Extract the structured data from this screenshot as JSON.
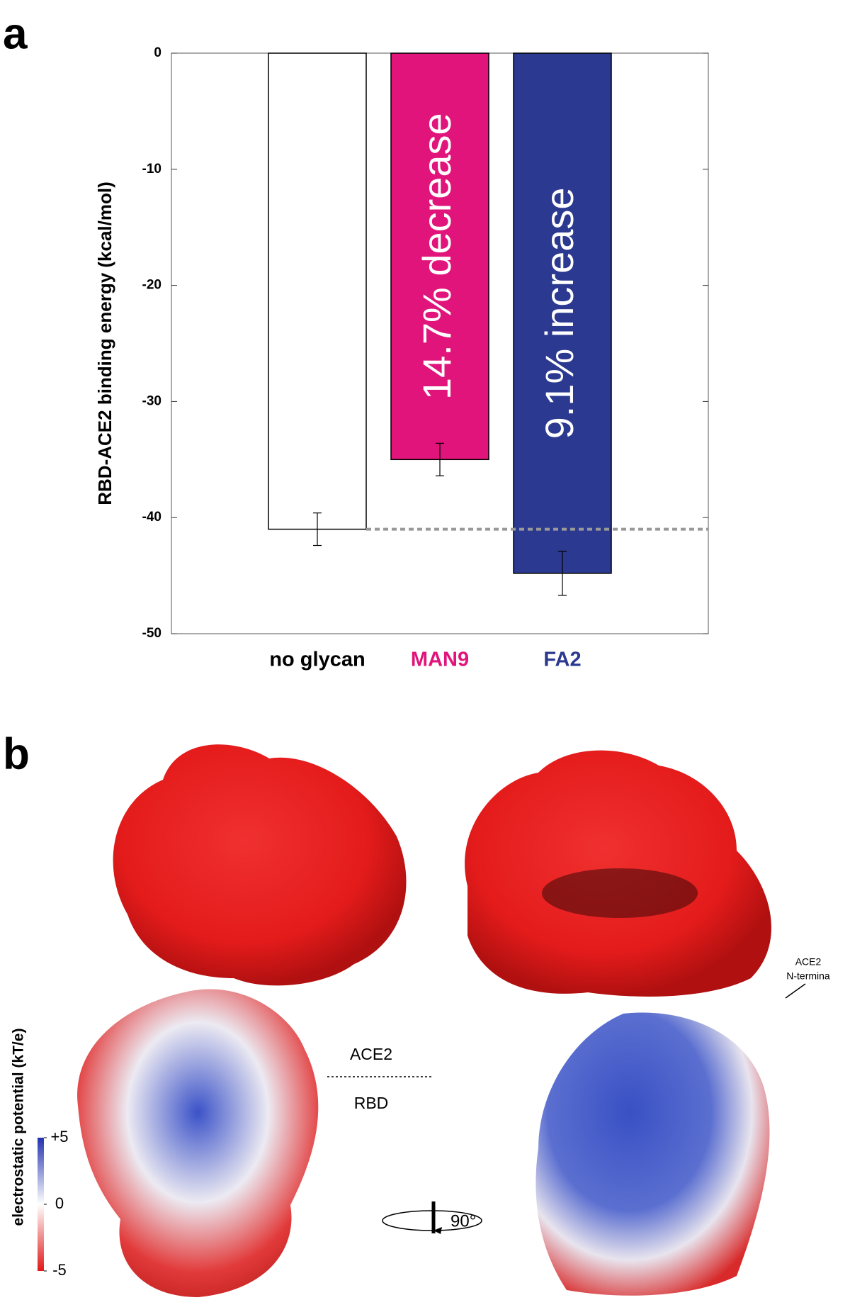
{
  "panel_labels": [
    "a",
    "b"
  ],
  "chart_data": {
    "type": "bar",
    "y_label": "RBD-ACE2 binding energy (kcal/mol)",
    "categories": [
      "no glycan",
      "MAN9",
      "FA2"
    ],
    "values": [
      -41.0,
      -35.0,
      -44.8
    ],
    "errors": [
      1.4,
      1.4,
      1.9
    ],
    "colors": [
      "#ffffff",
      "#e0147a",
      "#2b3990"
    ],
    "label_colors": [
      "#000000",
      "#e0147a",
      "#2b3990"
    ],
    "bar_annotations": [
      null,
      "14.7% decrease",
      "9.1% increase"
    ],
    "ylim": [
      -50,
      0
    ],
    "yticks": [
      0,
      -10,
      -20,
      -30,
      -40,
      -50
    ]
  },
  "structure_panel": {
    "labels": {
      "ace2": "ACE2",
      "rbd": "RBD",
      "n_terminal": [
        "ACE2",
        "N-termina"
      ],
      "rotation": "90°"
    },
    "colorbar": {
      "label": "electrostatic potential (kT/e)",
      "lim": [
        -5,
        5
      ],
      "ticks": [
        {
          "value": 5,
          "label": "+5"
        },
        0,
        {
          "value": -5,
          "label": "-5"
        }
      ]
    }
  }
}
